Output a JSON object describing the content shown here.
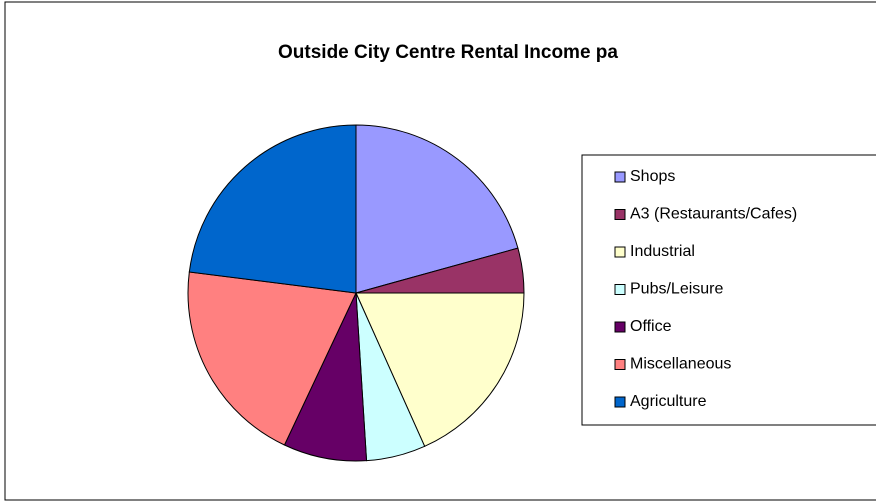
{
  "chart_data": {
    "type": "pie",
    "title": "Outside City Centre Rental Income pa",
    "categories": [
      "Shops",
      "A3 (Restaurants/Cafes)",
      "Industrial",
      "Pubs/Leisure",
      "Office",
      "Miscellaneous",
      "Agriculture"
    ],
    "values": [
      20.7,
      4.3,
      18.3,
      5.7,
      8.0,
      20.0,
      23.0
    ],
    "colors": [
      "#9999ff",
      "#993366",
      "#ffffcc",
      "#ccffff",
      "#660066",
      "#ff8080",
      "#0066cc"
    ],
    "legend": "right"
  }
}
